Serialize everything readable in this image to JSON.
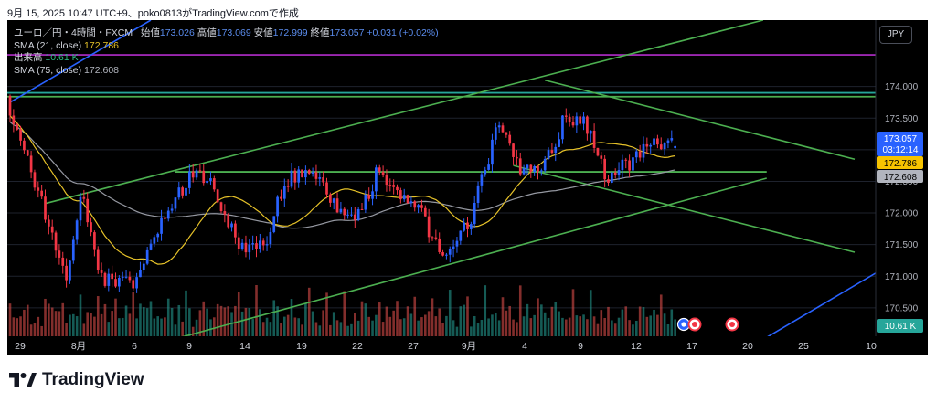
{
  "caption": "9月 15, 2025 10:47 UTC+9、poko0813がTradingView.comで作成",
  "legend": {
    "title": "ユーロ／円・4時間・FXCM",
    "o_label": "始値",
    "o_val": "173.026",
    "h_label": "高値",
    "h_val": "173.069",
    "l_label": "安値",
    "l_val": "172.999",
    "c_label": "終値",
    "c_val": "173.057",
    "change": "+0.031 (+0.02%)",
    "sma21_label": "SMA (21, close)",
    "sma21_val": "172.786",
    "vol_label": "出来高",
    "vol_val": "10.61 K",
    "sma75_label": "SMA (75, close)",
    "sma75_val": "172.608"
  },
  "currency_button": "JPY",
  "logo_text": "TradingView",
  "colors": {
    "up": "#2962ff",
    "down": "#f23645",
    "vol_up": "#26a69a",
    "vol_down": "#ef5350",
    "sma21": "#e6c229",
    "sma75": "#9598a1",
    "trend_green": "#4caf50",
    "trend_blue": "#2962ff",
    "purple": "#9c27b0",
    "teal": "#26a69a"
  },
  "chart_data": {
    "type": "candlestick",
    "symbol": "EURJPY",
    "timeframe": "4h",
    "y_ticks": [
      "174.000",
      "173.500",
      "173.000",
      "172.500",
      "172.000",
      "171.500",
      "171.000",
      "170.500"
    ],
    "ylim": [
      170.05,
      175.05
    ],
    "x_tick_labels": [
      "29",
      "8月",
      "6",
      "9",
      "14",
      "19",
      "22",
      "27",
      "9月",
      "4",
      "9",
      "12",
      "17",
      "20",
      "25",
      "10"
    ],
    "price_badges": [
      {
        "value": "173.057",
        "sub": "03:12:14",
        "color": "#2962ff",
        "text_color": "#ffffff"
      },
      {
        "value": "172.786",
        "color": "#f7c400",
        "text_color": "#000000"
      },
      {
        "value": "172.608",
        "color": "#b2b5be",
        "text_color": "#000000"
      }
    ],
    "volume_badge": "10.61 K",
    "horizontal_lines": [
      {
        "price": 174.5,
        "color": "#9c27b0"
      },
      {
        "price": 173.9,
        "color": "#26a69a"
      },
      {
        "price": 173.84,
        "color": "#4caf50"
      },
      {
        "price": 172.65,
        "color": "#4caf50",
        "from_index": 47
      }
    ],
    "trend_lines": [
      {
        "color": "#4caf50",
        "from": [
          10,
          172.15
        ],
        "to": [
          214,
          175.05
        ]
      },
      {
        "color": "#4caf50",
        "from": [
          43,
          169.95
        ],
        "to": [
          215,
          172.55
        ]
      },
      {
        "color": "#4caf50",
        "from": [
          152,
          174.1
        ],
        "to": [
          240,
          172.85
        ]
      },
      {
        "color": "#4caf50",
        "from": [
          143,
          172.75
        ],
        "to": [
          240,
          171.38
        ]
      },
      {
        "color": "#2962ff",
        "from": [
          0,
          173.75
        ],
        "to": [
          40,
          175.05
        ]
      },
      {
        "color": "#2962ff",
        "from": [
          214,
          170.0
        ],
        "to": [
          246,
          171.05
        ]
      }
    ],
    "series": [
      {
        "name": "EURJPY",
        "kind": "ohlc",
        "ohlc": []
      },
      {
        "name": "SMA (21, close)",
        "kind": "line",
        "values": []
      },
      {
        "name": "SMA (75, close)",
        "kind": "line",
        "values": []
      },
      {
        "name": "出来高",
        "kind": "volume",
        "values": []
      }
    ]
  }
}
